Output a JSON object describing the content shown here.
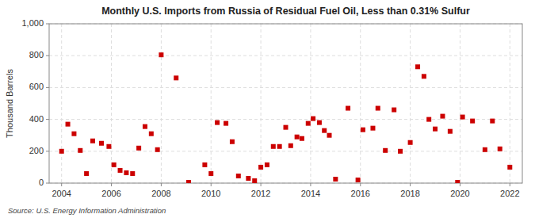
{
  "chart_data": {
    "type": "scatter",
    "title": "Monthly U.S. Imports from Russia of Residual Fuel Oil, Less than 0.31% Sulfur",
    "ylabel": "Thousand Barrels",
    "annotations": [
      "Source: U.S. Energy Information Administration"
    ],
    "color": "#cc0000",
    "marker": "square",
    "grid": true,
    "xlim": [
      2003.5,
      2022.5
    ],
    "xticks": [
      2004,
      2006,
      2008,
      2010,
      2012,
      2014,
      2016,
      2018,
      2020,
      2022
    ],
    "ylim": [
      0,
      1000
    ],
    "yticks": [
      0,
      200,
      400,
      600,
      800,
      {
        "value": 1000,
        "label": "1,000"
      }
    ],
    "x": [
      2004.0,
      2004.25,
      2004.5,
      2004.75,
      2005.0,
      2005.25,
      2005.6,
      2005.9,
      2006.1,
      2006.35,
      2006.6,
      2006.85,
      2007.1,
      2007.35,
      2007.6,
      2007.85,
      2008.0,
      2008.6,
      2009.1,
      2009.75,
      2010.0,
      2010.25,
      2010.6,
      2010.85,
      2011.1,
      2011.5,
      2011.75,
      2012.0,
      2012.25,
      2012.5,
      2012.75,
      2013.0,
      2013.2,
      2013.45,
      2013.65,
      2013.9,
      2014.1,
      2014.35,
      2014.55,
      2014.75,
      2015.0,
      2015.5,
      2015.9,
      2016.1,
      2016.5,
      2016.7,
      2017.0,
      2017.35,
      2017.6,
      2018.0,
      2018.3,
      2018.55,
      2018.75,
      2019.0,
      2019.3,
      2019.6,
      2019.9,
      2020.1,
      2020.5,
      2021.0,
      2021.3,
      2021.6,
      2022.0
    ],
    "values": [
      200,
      370,
      310,
      205,
      60,
      265,
      250,
      230,
      115,
      80,
      65,
      60,
      220,
      355,
      310,
      210,
      805,
      660,
      5,
      115,
      60,
      380,
      375,
      260,
      45,
      30,
      15,
      100,
      115,
      230,
      230,
      350,
      235,
      290,
      280,
      375,
      405,
      380,
      330,
      300,
      25,
      470,
      20,
      335,
      345,
      470,
      205,
      460,
      200,
      255,
      730,
      670,
      400,
      340,
      420,
      325,
      5,
      415,
      390,
      210,
      390,
      215,
      100
    ]
  }
}
